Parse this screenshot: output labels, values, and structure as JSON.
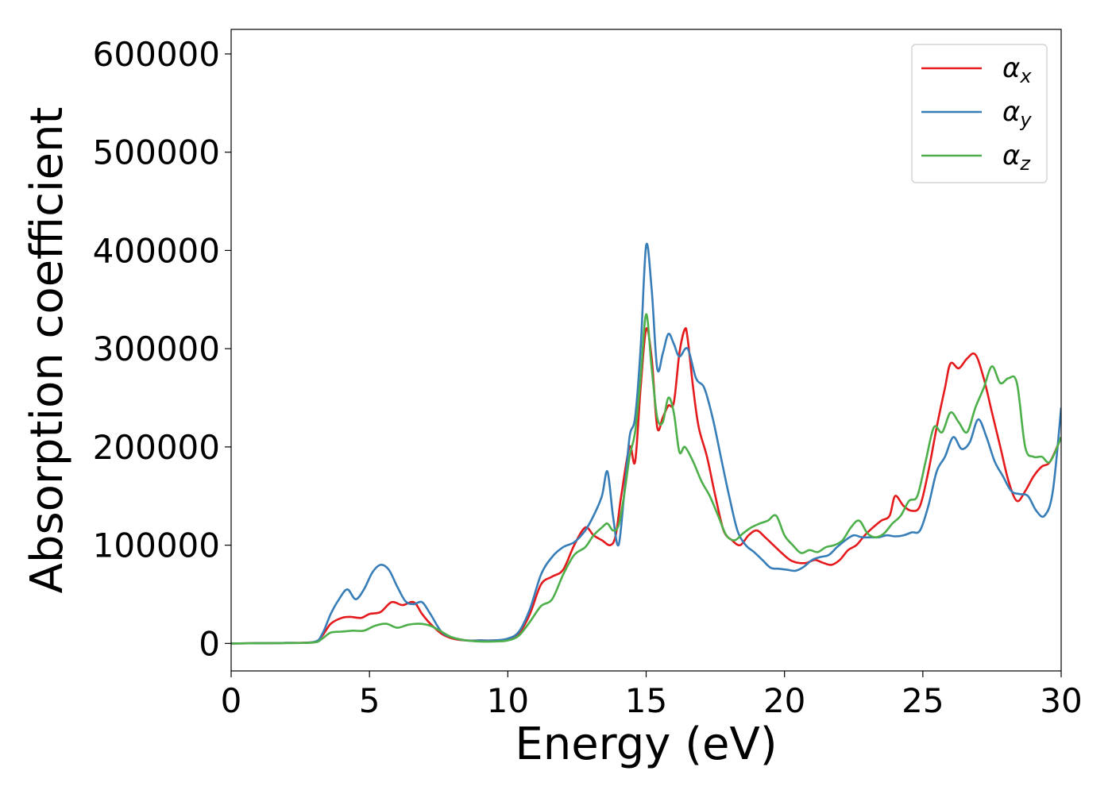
{
  "chart_data": {
    "type": "line",
    "title": "",
    "xlabel": "Energy (eV)",
    "ylabel": "Absorption coefficient",
    "xlim": [
      0,
      30
    ],
    "ylim": [
      -28000,
      625000
    ],
    "xticks": [
      0,
      5,
      10,
      15,
      20,
      25,
      30
    ],
    "yticks": [
      0,
      100000,
      200000,
      300000,
      400000,
      500000,
      600000
    ],
    "grid": false,
    "legend_position": "top-right",
    "series": [
      {
        "name": "α_x",
        "label_base": "α",
        "label_sub": "x",
        "color": "#e41a1c",
        "x": [
          0,
          1,
          2,
          3,
          3.3,
          3.6,
          4.0,
          4.3,
          4.7,
          5.0,
          5.4,
          5.8,
          6.2,
          6.6,
          6.9,
          7.2,
          7.6,
          8.0,
          8.5,
          9,
          9.5,
          10,
          10.4,
          10.8,
          11.2,
          11.6,
          12.0,
          12.4,
          12.8,
          13.1,
          13.4,
          13.7,
          13.9,
          14.1,
          14.4,
          14.6,
          14.8,
          15.0,
          15.2,
          15.4,
          15.6,
          15.8,
          16.0,
          16.2,
          16.4,
          16.5,
          16.7,
          16.9,
          17.2,
          17.5,
          17.8,
          18.1,
          18.4,
          18.7,
          19.0,
          19.3,
          19.6,
          19.9,
          20.2,
          20.5,
          20.8,
          21.1,
          21.4,
          21.7,
          22.0,
          22.3,
          22.6,
          22.9,
          23.2,
          23.5,
          23.8,
          24.0,
          24.3,
          24.6,
          24.9,
          25.2,
          25.5,
          25.8,
          26.0,
          26.3,
          26.6,
          26.9,
          27.2,
          27.5,
          27.8,
          28.1,
          28.4,
          28.7,
          29.0,
          29.3,
          29.6,
          30
        ],
        "values": [
          0,
          200,
          500,
          1500,
          8000,
          20000,
          26000,
          27000,
          26000,
          30000,
          32000,
          42000,
          39000,
          42000,
          30000,
          20000,
          10000,
          5000,
          3000,
          3000,
          3000,
          4000,
          10000,
          30000,
          60000,
          68000,
          75000,
          100000,
          118000,
          110000,
          105000,
          100000,
          110000,
          150000,
          200000,
          185000,
          260000,
          320000,
          290000,
          220000,
          230000,
          242000,
          245000,
          295000,
          320000,
          310000,
          260000,
          220000,
          190000,
          150000,
          115000,
          105000,
          100000,
          110000,
          115000,
          108000,
          100000,
          92000,
          85000,
          82000,
          82000,
          85000,
          82000,
          80000,
          85000,
          95000,
          100000,
          110000,
          118000,
          125000,
          130000,
          150000,
          140000,
          135000,
          140000,
          175000,
          220000,
          260000,
          285000,
          280000,
          290000,
          294000,
          270000,
          235000,
          200000,
          165000,
          145000,
          155000,
          170000,
          180000,
          185000,
          210000
        ]
      },
      {
        "name": "α_y",
        "label_base": "α",
        "label_sub": "y",
        "color": "#377eb8",
        "x": [
          0,
          1,
          2,
          3,
          3.3,
          3.6,
          3.9,
          4.2,
          4.5,
          4.8,
          5.1,
          5.4,
          5.7,
          6.0,
          6.3,
          6.6,
          6.9,
          7.2,
          7.6,
          8.0,
          8.5,
          9,
          9.5,
          10,
          10.4,
          10.8,
          11.2,
          11.6,
          12.0,
          12.4,
          12.8,
          13.1,
          13.4,
          13.6,
          13.8,
          14.0,
          14.2,
          14.4,
          14.6,
          14.8,
          15.0,
          15.2,
          15.4,
          15.6,
          15.8,
          16.0,
          16.2,
          16.5,
          16.8,
          17.1,
          17.4,
          17.7,
          18.0,
          18.3,
          18.6,
          18.9,
          19.2,
          19.5,
          19.8,
          20.1,
          20.4,
          20.7,
          21.0,
          21.3,
          21.6,
          21.9,
          22.2,
          22.5,
          22.8,
          23.1,
          23.4,
          23.7,
          24.0,
          24.3,
          24.6,
          24.9,
          25.2,
          25.5,
          25.8,
          26.1,
          26.4,
          26.7,
          27.0,
          27.3,
          27.6,
          27.9,
          28.2,
          28.5,
          28.8,
          29.1,
          29.4,
          29.7,
          30
        ],
        "values": [
          0,
          200,
          500,
          1500,
          10000,
          30000,
          45000,
          55000,
          45000,
          55000,
          72000,
          80000,
          75000,
          58000,
          43000,
          40000,
          42000,
          30000,
          12000,
          6000,
          3000,
          3000,
          3000,
          5000,
          12000,
          35000,
          70000,
          88000,
          98000,
          103000,
          115000,
          130000,
          150000,
          175000,
          130000,
          100000,
          150000,
          210000,
          230000,
          300000,
          405000,
          360000,
          280000,
          295000,
          315000,
          305000,
          292000,
          300000,
          270000,
          260000,
          230000,
          190000,
          150000,
          115000,
          100000,
          93000,
          85000,
          77000,
          76000,
          75000,
          74000,
          78000,
          85000,
          88000,
          90000,
          98000,
          105000,
          110000,
          108000,
          108000,
          108000,
          110000,
          109000,
          110000,
          113000,
          115000,
          140000,
          175000,
          190000,
          210000,
          198000,
          205000,
          228000,
          210000,
          185000,
          170000,
          155000,
          152000,
          150000,
          135000,
          130000,
          155000,
          240000
        ]
      },
      {
        "name": "α_z",
        "label_base": "α",
        "label_sub": "z",
        "color": "#4daf4a",
        "x": [
          0,
          1,
          2,
          3,
          3.3,
          3.6,
          4.0,
          4.4,
          4.8,
          5.2,
          5.6,
          6.0,
          6.4,
          6.8,
          7.2,
          7.6,
          8.0,
          8.5,
          9,
          9.5,
          10,
          10.4,
          10.8,
          11.2,
          11.6,
          12.0,
          12.4,
          12.8,
          13.1,
          13.4,
          13.6,
          13.8,
          14.0,
          14.2,
          14.4,
          14.6,
          14.8,
          15.0,
          15.2,
          15.4,
          15.6,
          15.8,
          16.0,
          16.2,
          16.4,
          16.7,
          17.0,
          17.3,
          17.6,
          17.9,
          18.2,
          18.5,
          18.8,
          19.1,
          19.4,
          19.7,
          20.0,
          20.3,
          20.6,
          20.9,
          21.2,
          21.5,
          21.8,
          22.1,
          22.4,
          22.7,
          23.0,
          23.3,
          23.6,
          23.9,
          24.2,
          24.5,
          24.8,
          25.1,
          25.4,
          25.7,
          26.0,
          26.3,
          26.6,
          26.9,
          27.2,
          27.5,
          27.8,
          28.1,
          28.4,
          28.7,
          29.0,
          29.3,
          29.6,
          30
        ],
        "values": [
          0,
          200,
          400,
          1000,
          5000,
          11000,
          12000,
          13000,
          13000,
          18000,
          20000,
          16000,
          19000,
          20000,
          18000,
          12000,
          6000,
          3000,
          2000,
          2000,
          3000,
          8000,
          22000,
          38000,
          45000,
          70000,
          90000,
          98000,
          110000,
          118000,
          122000,
          115000,
          120000,
          150000,
          190000,
          215000,
          270000,
          335000,
          280000,
          230000,
          225000,
          250000,
          235000,
          195000,
          200000,
          185000,
          165000,
          150000,
          130000,
          110000,
          105000,
          112000,
          118000,
          122000,
          125000,
          130000,
          110000,
          100000,
          92000,
          95000,
          93000,
          98000,
          100000,
          105000,
          118000,
          125000,
          112000,
          108000,
          112000,
          122000,
          130000,
          145000,
          150000,
          185000,
          220000,
          215000,
          235000,
          225000,
          215000,
          240000,
          260000,
          282000,
          265000,
          270000,
          265000,
          200000,
          190000,
          190000,
          185000,
          210000
        ]
      }
    ]
  }
}
